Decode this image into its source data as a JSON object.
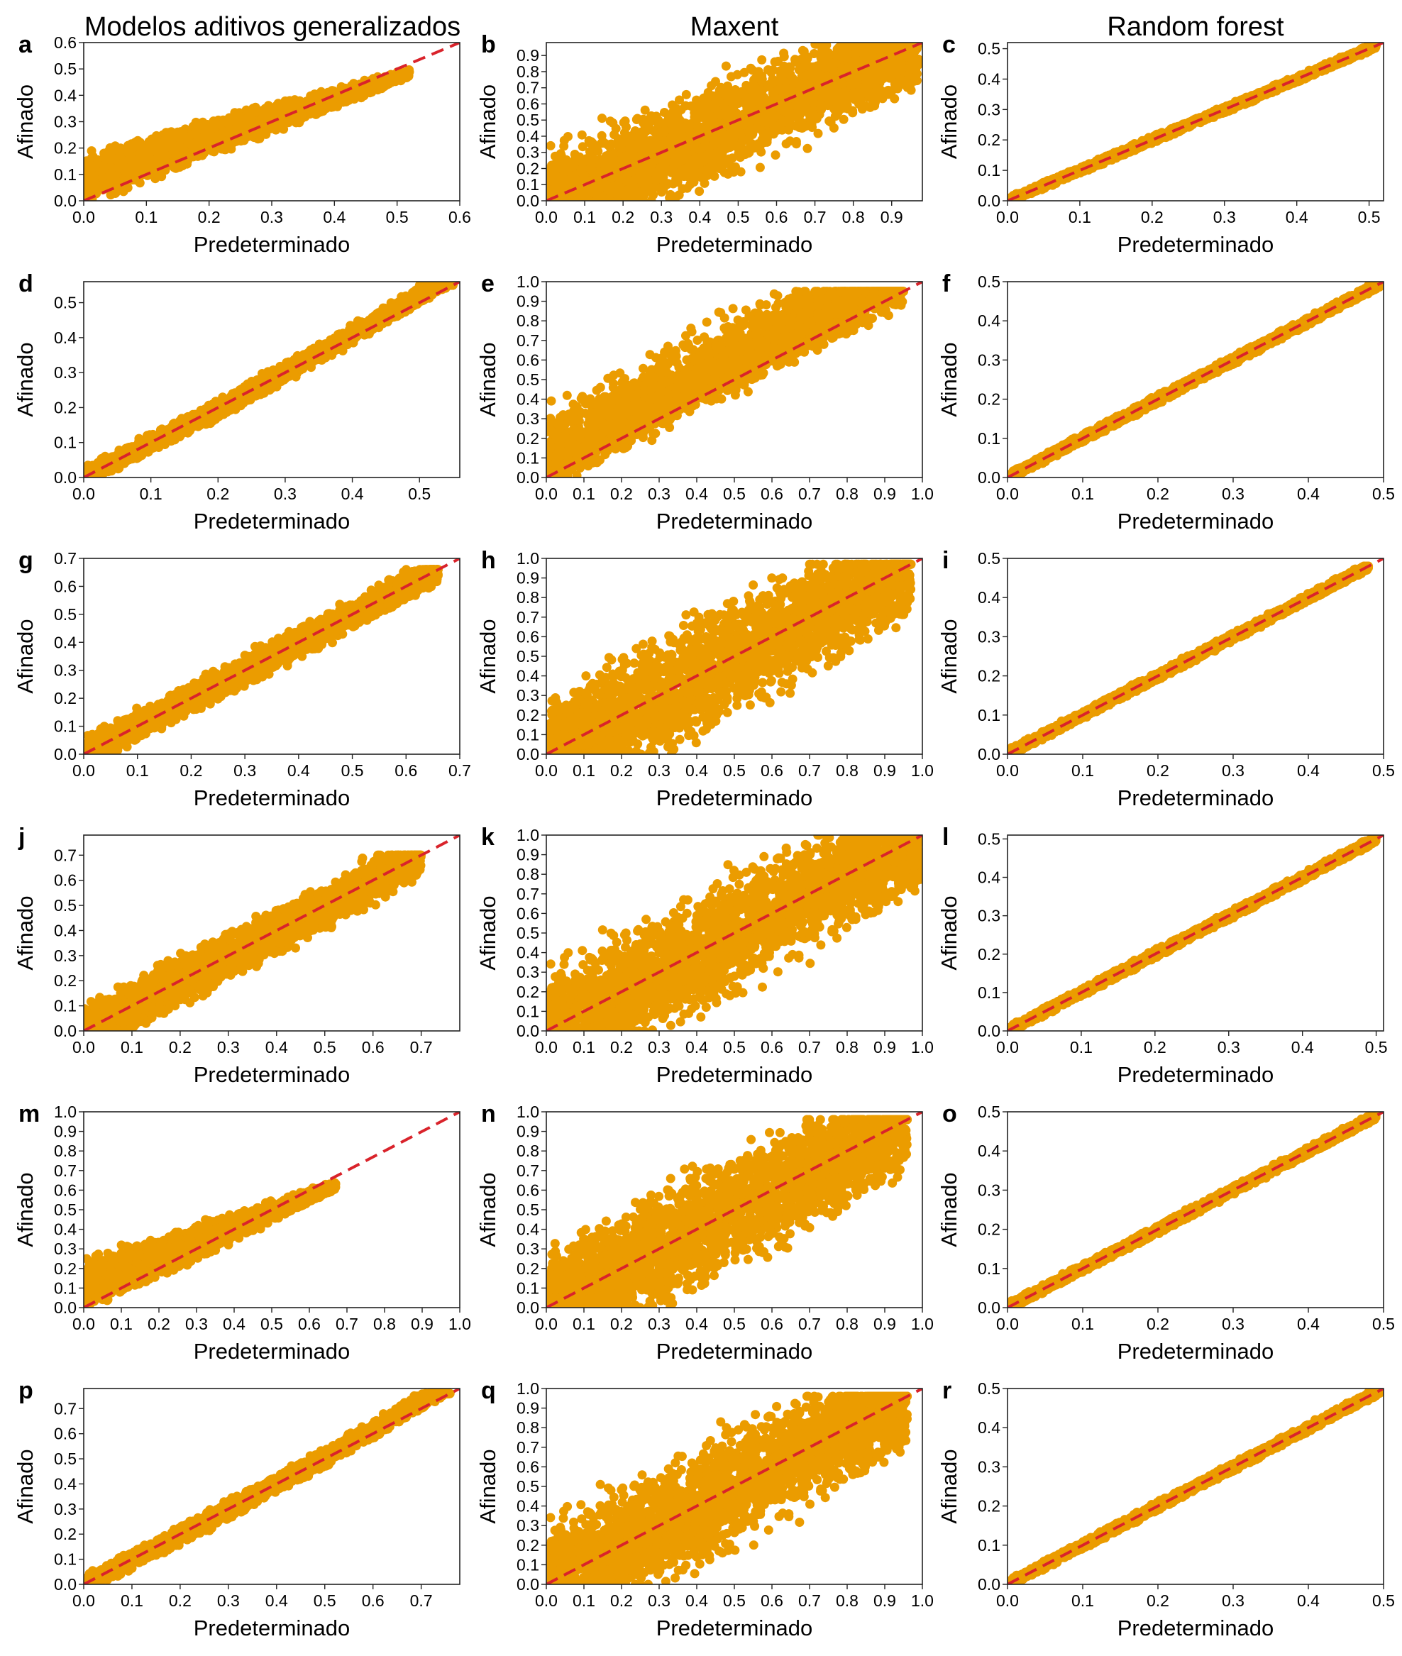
{
  "figure": {
    "column_titles": [
      "Modelos aditivos generalizados",
      "Maxent",
      "Random forest"
    ],
    "point_color": "#eb9c00",
    "line_color": "#d9232b"
  },
  "chart_data": [
    {
      "panel": "a",
      "type": "scatter",
      "xlabel": "Predeterminado",
      "ylabel": "Afinado",
      "xlim": [
        0,
        0.6
      ],
      "ylim": [
        0,
        0.6
      ],
      "xticks": [
        "0.0",
        "0.1",
        "0.2",
        "0.3",
        "0.4",
        "0.5",
        "0.6"
      ],
      "yticks": [
        "0.0",
        "0.1",
        "0.2",
        "0.3",
        "0.4",
        "0.5",
        "0.6"
      ],
      "pattern": "gam_upward",
      "xmax_data": 0.52,
      "reference_line": "y = x"
    },
    {
      "panel": "b",
      "type": "scatter",
      "xlabel": "Predeterminado",
      "ylabel": "Afinado",
      "xlim": [
        0,
        0.98
      ],
      "ylim": [
        0,
        0.98
      ],
      "xticks": [
        "0.0",
        "0.1",
        "0.2",
        "0.3",
        "0.4",
        "0.5",
        "0.6",
        "0.7",
        "0.8",
        "0.9"
      ],
      "yticks": [
        "0.0",
        "0.1",
        "0.2",
        "0.3",
        "0.4",
        "0.5",
        "0.6",
        "0.7",
        "0.8",
        "0.9"
      ],
      "pattern": "maxent_wide",
      "xmax_data": 0.97,
      "reference_line": "y = x"
    },
    {
      "panel": "c",
      "type": "scatter",
      "xlabel": "Predeterminado",
      "ylabel": "Afinado",
      "xlim": [
        0,
        0.52
      ],
      "ylim": [
        0,
        0.52
      ],
      "xticks": [
        "0.0",
        "0.1",
        "0.2",
        "0.3",
        "0.4",
        "0.5"
      ],
      "yticks": [
        "0.0",
        "0.1",
        "0.2",
        "0.3",
        "0.4",
        "0.5"
      ],
      "pattern": "rf_tight",
      "xmax_data": 0.51,
      "reference_line": "y = x"
    },
    {
      "panel": "d",
      "type": "scatter",
      "xlabel": "Predeterminado",
      "ylabel": "Afinado",
      "xlim": [
        0,
        0.56
      ],
      "ylim": [
        0,
        0.56
      ],
      "xticks": [
        "0.0",
        "0.1",
        "0.2",
        "0.3",
        "0.4",
        "0.5"
      ],
      "yticks": [
        "0.0",
        "0.1",
        "0.2",
        "0.3",
        "0.4",
        "0.5"
      ],
      "pattern": "gam_tight",
      "xmax_data": 0.55,
      "reference_line": "y = x"
    },
    {
      "panel": "e",
      "type": "scatter",
      "xlabel": "Predeterminado",
      "ylabel": "Afinado",
      "xlim": [
        0,
        1.0
      ],
      "ylim": [
        0,
        1.0
      ],
      "xticks": [
        "0.0",
        "0.1",
        "0.2",
        "0.3",
        "0.4",
        "0.5",
        "0.6",
        "0.7",
        "0.8",
        "0.9",
        "1.0"
      ],
      "yticks": [
        "0.0",
        "0.1",
        "0.2",
        "0.3",
        "0.4",
        "0.5",
        "0.6",
        "0.7",
        "0.8",
        "0.9",
        "1.0"
      ],
      "pattern": "maxent_upper",
      "xmax_data": 0.95,
      "reference_line": "y = x"
    },
    {
      "panel": "f",
      "type": "scatter",
      "xlabel": "Predeterminado",
      "ylabel": "Afinado",
      "xlim": [
        0,
        0.5
      ],
      "ylim": [
        0,
        0.5
      ],
      "xticks": [
        "0.0",
        "0.1",
        "0.2",
        "0.3",
        "0.4",
        "0.5"
      ],
      "yticks": [
        "0.0",
        "0.1",
        "0.2",
        "0.3",
        "0.4",
        "0.5"
      ],
      "pattern": "rf_tight",
      "xmax_data": 0.5,
      "reference_line": "y = x"
    },
    {
      "panel": "g",
      "type": "scatter",
      "xlabel": "Predeterminado",
      "ylabel": "Afinado",
      "xlim": [
        0,
        0.7
      ],
      "ylim": [
        0,
        0.7
      ],
      "xticks": [
        "0.0",
        "0.1",
        "0.2",
        "0.3",
        "0.4",
        "0.5",
        "0.6",
        "0.7"
      ],
      "yticks": [
        "0.0",
        "0.1",
        "0.2",
        "0.3",
        "0.4",
        "0.5",
        "0.6",
        "0.7"
      ],
      "pattern": "gam_medium",
      "xmax_data": 0.66,
      "reference_line": "y = x"
    },
    {
      "panel": "h",
      "type": "scatter",
      "xlabel": "Predeterminado",
      "ylabel": "Afinado",
      "xlim": [
        0,
        1.0
      ],
      "ylim": [
        0,
        1.0
      ],
      "xticks": [
        "0.0",
        "0.1",
        "0.2",
        "0.3",
        "0.4",
        "0.5",
        "0.6",
        "0.7",
        "0.8",
        "0.9",
        "1.0"
      ],
      "yticks": [
        "0.0",
        "0.1",
        "0.2",
        "0.3",
        "0.4",
        "0.5",
        "0.6",
        "0.7",
        "0.8",
        "0.9",
        "1.0"
      ],
      "pattern": "maxent_wide",
      "xmax_data": 0.97,
      "reference_line": "y = x"
    },
    {
      "panel": "i",
      "type": "scatter",
      "xlabel": "Predeterminado",
      "ylabel": "Afinado",
      "xlim": [
        0,
        0.5
      ],
      "ylim": [
        0,
        0.5
      ],
      "xticks": [
        "0.0",
        "0.1",
        "0.2",
        "0.3",
        "0.4",
        "0.5"
      ],
      "yticks": [
        "0.0",
        "0.1",
        "0.2",
        "0.3",
        "0.4",
        "0.5"
      ],
      "pattern": "rf_tight",
      "xmax_data": 0.48,
      "reference_line": "y = x"
    },
    {
      "panel": "j",
      "type": "scatter",
      "xlabel": "Predeterminado",
      "ylabel": "Afinado",
      "xlim": [
        0,
        0.78
      ],
      "ylim": [
        0,
        0.78
      ],
      "xticks": [
        "0.0",
        "0.1",
        "0.2",
        "0.3",
        "0.4",
        "0.5",
        "0.6",
        "0.7"
      ],
      "yticks": [
        "0.0",
        "0.1",
        "0.2",
        "0.3",
        "0.4",
        "0.5",
        "0.6",
        "0.7"
      ],
      "pattern": "gam_sparse",
      "xmax_data": 0.7,
      "reference_line": "y = x"
    },
    {
      "panel": "k",
      "type": "scatter",
      "xlabel": "Predeterminado",
      "ylabel": "Afinado",
      "xlim": [
        0,
        1.0
      ],
      "ylim": [
        0,
        1.0
      ],
      "xticks": [
        "0.0",
        "0.1",
        "0.2",
        "0.3",
        "0.4",
        "0.5",
        "0.6",
        "0.7",
        "0.8",
        "0.9",
        "1.0"
      ],
      "yticks": [
        "0.0",
        "0.1",
        "0.2",
        "0.3",
        "0.4",
        "0.5",
        "0.6",
        "0.7",
        "0.8",
        "0.9",
        "1.0"
      ],
      "pattern": "maxent_wide",
      "xmax_data": 1.0,
      "reference_line": "y = x"
    },
    {
      "panel": "l",
      "type": "scatter",
      "xlabel": "Predeterminado",
      "ylabel": "Afinado",
      "xlim": [
        0,
        0.51
      ],
      "ylim": [
        0,
        0.51
      ],
      "xticks": [
        "0.0",
        "0.1",
        "0.2",
        "0.3",
        "0.4",
        "0.5"
      ],
      "yticks": [
        "0.0",
        "0.1",
        "0.2",
        "0.3",
        "0.4",
        "0.5"
      ],
      "pattern": "rf_tight",
      "xmax_data": 0.5,
      "reference_line": "y = x"
    },
    {
      "panel": "m",
      "type": "scatter",
      "xlabel": "Predeterminado",
      "ylabel": "Afinado",
      "xlim": [
        0,
        1.0
      ],
      "ylim": [
        0,
        1.0
      ],
      "xticks": [
        "0.0",
        "0.1",
        "0.2",
        "0.3",
        "0.4",
        "0.5",
        "0.6",
        "0.7",
        "0.8",
        "0.9",
        "1.0"
      ],
      "yticks": [
        "0.0",
        "0.1",
        "0.2",
        "0.3",
        "0.4",
        "0.5",
        "0.6",
        "0.7",
        "0.8",
        "0.9",
        "1.0"
      ],
      "pattern": "gam_upward",
      "xmax_data": 0.67,
      "reference_line": "y = x"
    },
    {
      "panel": "n",
      "type": "scatter",
      "xlabel": "Predeterminado",
      "ylabel": "Afinado",
      "xlim": [
        0,
        1.0
      ],
      "ylim": [
        0,
        1.0
      ],
      "xticks": [
        "0.0",
        "0.1",
        "0.2",
        "0.3",
        "0.4",
        "0.5",
        "0.6",
        "0.7",
        "0.8",
        "0.9",
        "1.0"
      ],
      "yticks": [
        "0.0",
        "0.1",
        "0.2",
        "0.3",
        "0.4",
        "0.5",
        "0.6",
        "0.7",
        "0.8",
        "0.9",
        "1.0"
      ],
      "pattern": "maxent_wide",
      "xmax_data": 0.96,
      "reference_line": "y = x"
    },
    {
      "panel": "o",
      "type": "scatter",
      "xlabel": "Predeterminado",
      "ylabel": "Afinado",
      "xlim": [
        0,
        0.5
      ],
      "ylim": [
        0,
        0.5
      ],
      "xticks": [
        "0.0",
        "0.1",
        "0.2",
        "0.3",
        "0.4",
        "0.5"
      ],
      "yticks": [
        "0.0",
        "0.1",
        "0.2",
        "0.3",
        "0.4",
        "0.5"
      ],
      "pattern": "rf_tight",
      "xmax_data": 0.49,
      "reference_line": "y = x"
    },
    {
      "panel": "p",
      "type": "scatter",
      "xlabel": "Predeterminado",
      "ylabel": "Afinado",
      "xlim": [
        0,
        0.78
      ],
      "ylim": [
        0,
        0.78
      ],
      "xticks": [
        "0.0",
        "0.1",
        "0.2",
        "0.3",
        "0.4",
        "0.5",
        "0.6",
        "0.7"
      ],
      "yticks": [
        "0.0",
        "0.1",
        "0.2",
        "0.3",
        "0.4",
        "0.5",
        "0.6",
        "0.7"
      ],
      "pattern": "gam_tight",
      "xmax_data": 0.76,
      "reference_line": "y = x"
    },
    {
      "panel": "q",
      "type": "scatter",
      "xlabel": "Predeterminado",
      "ylabel": "Afinado",
      "xlim": [
        0,
        1.0
      ],
      "ylim": [
        0,
        1.0
      ],
      "xticks": [
        "0.0",
        "0.1",
        "0.2",
        "0.3",
        "0.4",
        "0.5",
        "0.6",
        "0.7",
        "0.8",
        "0.9",
        "1.0"
      ],
      "yticks": [
        "0.0",
        "0.1",
        "0.2",
        "0.3",
        "0.4",
        "0.5",
        "0.6",
        "0.7",
        "0.8",
        "0.9",
        "1.0"
      ],
      "pattern": "maxent_wide",
      "xmax_data": 0.96,
      "reference_line": "y = x"
    },
    {
      "panel": "r",
      "type": "scatter",
      "xlabel": "Predeterminado",
      "ylabel": "Afinado",
      "xlim": [
        0,
        0.5
      ],
      "ylim": [
        0,
        0.5
      ],
      "xticks": [
        "0.0",
        "0.1",
        "0.2",
        "0.3",
        "0.4",
        "0.5"
      ],
      "yticks": [
        "0.0",
        "0.1",
        "0.2",
        "0.3",
        "0.4",
        "0.5"
      ],
      "pattern": "rf_tight",
      "xmax_data": 0.5,
      "reference_line": "y = x"
    }
  ]
}
